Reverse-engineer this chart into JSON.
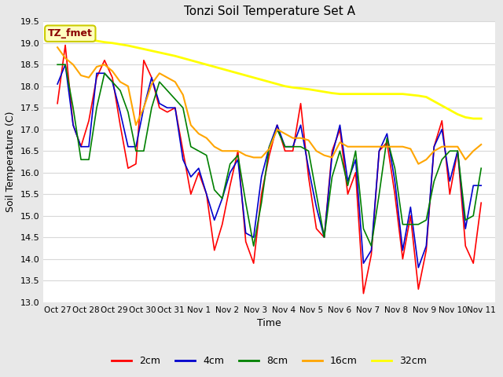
{
  "title": "Tonzi Soil Temperature Set A",
  "xlabel": "Time",
  "ylabel": "Soil Temperature (C)",
  "ylim": [
    13.0,
    19.5
  ],
  "annotation_text": "TZ_fmet",
  "annotation_color": "#8B0000",
  "annotation_bg": "#FFFFC0",
  "annotation_border": "#CCCC00",
  "fig_color": "#E8E8E8",
  "plot_bg": "#FFFFFF",
  "grid_color": "#D8D8D8",
  "xtick_labels": [
    "Oct 27",
    "Oct 28",
    "Oct 29",
    "Oct 30",
    "Oct 31",
    "Nov 1",
    "Nov 2",
    "Nov 3",
    "Nov 4",
    "Nov 5",
    "Nov 6",
    "Nov 7",
    "Nov 8",
    "Nov 9",
    "Nov 10",
    "Nov 11"
  ],
  "ytick_values": [
    13.0,
    13.5,
    14.0,
    14.5,
    15.0,
    15.5,
    16.0,
    16.5,
    17.0,
    17.5,
    18.0,
    18.5,
    19.0,
    19.5
  ],
  "series_order": [
    "2cm",
    "4cm",
    "8cm",
    "16cm",
    "32cm"
  ],
  "series": {
    "2cm": {
      "color": "#FF0000",
      "linewidth": 1.2
    },
    "4cm": {
      "color": "#0000CD",
      "linewidth": 1.2
    },
    "8cm": {
      "color": "#008000",
      "linewidth": 1.2
    },
    "16cm": {
      "color": "#FFA500",
      "linewidth": 1.5
    },
    "32cm": {
      "color": "#FFFF00",
      "linewidth": 2.0
    }
  },
  "data_2cm": [
    17.6,
    18.95,
    17.1,
    16.6,
    17.2,
    18.2,
    18.6,
    18.2,
    17.1,
    16.1,
    16.2,
    18.6,
    18.2,
    17.5,
    17.4,
    17.5,
    16.5,
    15.5,
    16.0,
    15.5,
    14.2,
    14.8,
    15.7,
    16.5,
    14.4,
    13.9,
    15.5,
    16.4,
    17.1,
    16.5,
    16.5,
    17.6,
    15.9,
    14.7,
    14.5,
    16.5,
    17.0,
    15.5,
    16.0,
    13.2,
    14.1,
    16.5,
    16.7,
    15.5,
    14.0,
    15.0,
    13.3,
    14.2,
    16.6,
    17.2,
    15.5,
    16.5,
    14.3,
    13.9,
    15.3
  ],
  "data_4cm": [
    18.05,
    18.5,
    17.1,
    16.6,
    16.6,
    18.3,
    18.3,
    18.1,
    17.4,
    16.6,
    16.6,
    17.5,
    18.2,
    17.6,
    17.5,
    17.5,
    16.3,
    15.9,
    16.1,
    15.5,
    14.9,
    15.4,
    16.0,
    16.3,
    14.6,
    14.5,
    15.9,
    16.6,
    17.1,
    16.6,
    16.6,
    17.1,
    16.1,
    15.2,
    14.5,
    16.4,
    17.1,
    15.8,
    16.3,
    13.9,
    14.2,
    16.5,
    16.9,
    15.8,
    14.2,
    15.2,
    13.8,
    14.3,
    16.6,
    17.0,
    15.8,
    16.5,
    14.7,
    15.7,
    15.7
  ],
  "data_8cm": [
    18.5,
    18.5,
    17.5,
    16.3,
    16.3,
    17.5,
    18.3,
    18.1,
    17.9,
    17.4,
    16.5,
    16.5,
    17.5,
    18.1,
    17.9,
    17.7,
    17.5,
    16.6,
    16.5,
    16.4,
    15.6,
    15.4,
    16.2,
    16.4,
    15.3,
    14.3,
    15.3,
    16.6,
    17.0,
    16.6,
    16.6,
    16.6,
    16.5,
    15.5,
    14.5,
    15.9,
    16.5,
    15.7,
    16.5,
    14.7,
    14.3,
    15.5,
    16.8,
    16.1,
    14.8,
    14.8,
    14.8,
    14.9,
    15.8,
    16.3,
    16.5,
    16.5,
    14.9,
    15.0,
    16.1
  ],
  "data_16cm": [
    18.9,
    18.65,
    18.5,
    18.25,
    18.2,
    18.45,
    18.5,
    18.35,
    18.1,
    18.0,
    17.1,
    17.5,
    18.05,
    18.3,
    18.2,
    18.1,
    17.8,
    17.1,
    16.9,
    16.8,
    16.6,
    16.5,
    16.5,
    16.5,
    16.4,
    16.35,
    16.35,
    16.55,
    17.0,
    16.9,
    16.8,
    16.8,
    16.75,
    16.5,
    16.4,
    16.35,
    16.7,
    16.6,
    16.6,
    16.6,
    16.6,
    16.6,
    16.6,
    16.6,
    16.6,
    16.55,
    16.2,
    16.3,
    16.5,
    16.6,
    16.6,
    16.6,
    16.3,
    16.5,
    16.65
  ],
  "data_32cm": [
    19.25,
    19.22,
    19.18,
    19.12,
    19.08,
    19.05,
    19.02,
    19.0,
    18.97,
    18.94,
    18.9,
    18.86,
    18.82,
    18.78,
    18.74,
    18.7,
    18.65,
    18.6,
    18.55,
    18.5,
    18.45,
    18.4,
    18.35,
    18.3,
    18.25,
    18.2,
    18.15,
    18.1,
    18.05,
    18.0,
    17.97,
    17.95,
    17.93,
    17.9,
    17.87,
    17.84,
    17.82,
    17.82,
    17.82,
    17.82,
    17.82,
    17.82,
    17.82,
    17.82,
    17.82,
    17.8,
    17.78,
    17.75,
    17.65,
    17.55,
    17.45,
    17.35,
    17.28,
    17.25,
    17.25
  ]
}
